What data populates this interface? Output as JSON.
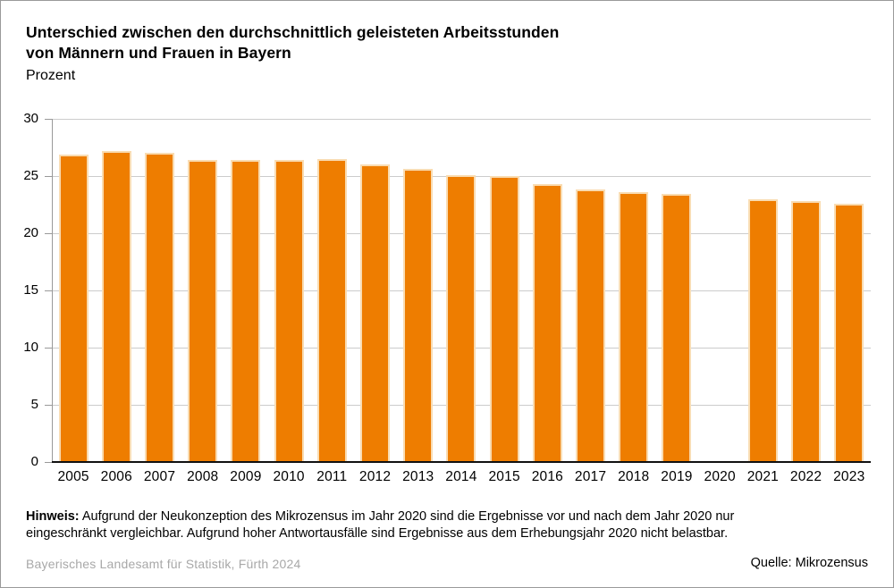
{
  "header": {
    "title_line1": "Unterschied zwischen den durchschnittlich geleisteten Arbeitsstunden",
    "title_line2": "von Männern und Frauen in Bayern",
    "subtitle": "Prozent"
  },
  "chart_data": {
    "type": "bar",
    "title": "Unterschied zwischen den durchschnittlich geleisteten Arbeitsstunden von Männern und Frauen in Bayern",
    "xlabel": "",
    "ylabel": "Prozent",
    "categories": [
      "2005",
      "2006",
      "2007",
      "2008",
      "2009",
      "2010",
      "2011",
      "2012",
      "2013",
      "2014",
      "2015",
      "2016",
      "2017",
      "2018",
      "2019",
      "2020",
      "2021",
      "2022",
      "2023"
    ],
    "values": [
      26.9,
      27.2,
      27.0,
      26.4,
      26.4,
      26.4,
      26.5,
      26.0,
      25.6,
      25.1,
      25.0,
      24.3,
      23.8,
      23.6,
      23.4,
      null,
      23.0,
      22.8,
      22.6
    ],
    "missing_note": "2020 has no bar (data not reliable)",
    "ylim": [
      0,
      30
    ],
    "yticks": [
      0,
      5,
      10,
      15,
      20,
      25,
      30
    ],
    "grid": true,
    "legend": "none",
    "bar_color": "#EE7D00",
    "bar_border_color": "#F9DCB2",
    "gridline_color": "#cccccc",
    "axis_color": "#999999",
    "baseline_color": "#111111"
  },
  "note": {
    "label": "Hinweis:",
    "line1": " Aufgrund der Neukonzeption des Mikrozensus im Jahr 2020 sind die Ergebnisse vor und nach dem Jahr 2020 nur",
    "line2": "eingeschränkt vergleichbar. Aufgrund hoher Antwortausfälle sind Ergebnisse aus dem Erhebungsjahr 2020 nicht belastbar."
  },
  "footer": {
    "publisher": "Bayerisches Landesamt für Statistik, Fürth 2024",
    "source": "Quelle: Mikrozensus"
  }
}
